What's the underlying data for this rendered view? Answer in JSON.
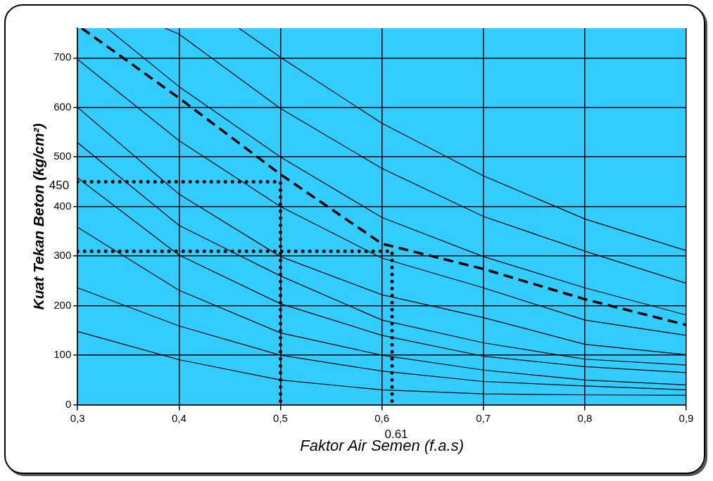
{
  "chart_data": {
    "type": "line",
    "xlabel": "Faktor Air Semen (f.a.s)",
    "ylabel": "Kuat Tekan Beton (kg/cm²)",
    "xlim": [
      0.3,
      0.9
    ],
    "ylim": [
      0,
      760
    ],
    "xticks": [
      {
        "value": 0.3,
        "label": "0,3"
      },
      {
        "value": 0.4,
        "label": "0,4"
      },
      {
        "value": 0.5,
        "label": "0,5"
      },
      {
        "value": 0.6,
        "label": "0,6"
      },
      {
        "value": 0.7,
        "label": "0,7"
      },
      {
        "value": 0.8,
        "label": "0,8"
      },
      {
        "value": 0.9,
        "label": "0,9"
      }
    ],
    "yticks": [
      0,
      100,
      200,
      300,
      400,
      500,
      600,
      700
    ],
    "grid": true,
    "legend": false,
    "marker": "none",
    "line_style": "solid",
    "series": [
      {
        "color": "#000000",
        "x": [
          0.459,
          0.5,
          0.6,
          0.7,
          0.8,
          0.9
        ],
        "values": [
          760,
          701,
          568,
          462,
          375,
          311
        ]
      },
      {
        "color": "#000000",
        "x": [
          0.386,
          0.4,
          0.5,
          0.6,
          0.7,
          0.8,
          0.9
        ],
        "values": [
          760,
          748,
          598,
          477,
          380,
          310,
          245
        ]
      },
      {
        "color": "#000000",
        "x": [
          0.329,
          0.4,
          0.5,
          0.6,
          0.7,
          0.8,
          0.9
        ],
        "values": [
          760,
          642,
          500,
          378,
          299,
          236,
          181
        ]
      },
      {
        "color": "#000000",
        "line_style": "dashed",
        "x": [
          0.304,
          0.4,
          0.5,
          0.6,
          0.7,
          0.8,
          0.9
        ],
        "values": [
          760,
          619,
          465,
          325,
          274,
          213,
          161
        ]
      },
      {
        "color": "#000000",
        "x": [
          0.3,
          0.4,
          0.5,
          0.6,
          0.7,
          0.8,
          0.9
        ],
        "values": [
          697,
          533,
          400,
          296,
          236,
          171,
          140
        ]
      },
      {
        "color": "#000000",
        "x": [
          0.3,
          0.4,
          0.5,
          0.6,
          0.7,
          0.8,
          0.9
        ],
        "values": [
          600,
          425,
          299,
          222,
          176,
          122,
          101
        ]
      },
      {
        "color": "#000000",
        "x": [
          0.3,
          0.4,
          0.5,
          0.6,
          0.7,
          0.8,
          0.9
        ],
        "values": [
          529,
          362,
          260,
          171,
          125,
          92,
          80
        ]
      },
      {
        "color": "#000000",
        "x": [
          0.3,
          0.4,
          0.5,
          0.6,
          0.7,
          0.8,
          0.9
        ],
        "values": [
          458,
          302,
          204,
          140,
          98,
          77,
          65
        ]
      },
      {
        "color": "#000000",
        "x": [
          0.3,
          0.4,
          0.5,
          0.6,
          0.7,
          0.8,
          0.9
        ],
        "values": [
          358,
          231,
          145,
          100,
          70,
          50,
          40
        ]
      },
      {
        "color": "#000000",
        "x": [
          0.3,
          0.4,
          0.5,
          0.6,
          0.7,
          0.8,
          0.9
        ],
        "values": [
          236,
          159,
          100,
          68,
          47,
          38,
          30
        ]
      },
      {
        "color": "#000000",
        "x": [
          0.3,
          0.4,
          0.5,
          0.6,
          0.7,
          0.8,
          0.9
        ],
        "values": [
          148,
          91,
          50,
          30,
          22,
          20,
          19
        ]
      },
      {
        "color": "#000000",
        "line_style": "dotted",
        "x": [
          0.3,
          0.5,
          0.5
        ],
        "values": [
          450,
          450,
          0
        ]
      },
      {
        "color": "#000000",
        "line_style": "dotted",
        "x": [
          0.3,
          0.61,
          0.61
        ],
        "values": [
          310,
          310,
          0
        ]
      }
    ],
    "annotations": [
      {
        "text": "450",
        "x": 0.3,
        "y": 450
      },
      {
        "text": "0.61",
        "x": 0.61,
        "y": 0
      }
    ]
  }
}
